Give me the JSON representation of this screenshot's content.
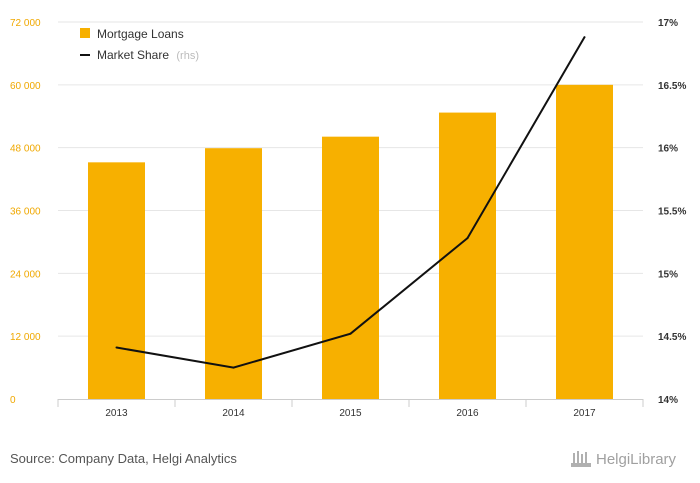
{
  "chart_data": {
    "type": "bar",
    "categories": [
      "2013",
      "2014",
      "2015",
      "2016",
      "2017"
    ],
    "series": [
      {
        "name": "Mortgage Loans",
        "type": "bar",
        "axis": "left",
        "values": [
          45200,
          47900,
          50100,
          54700,
          60000
        ]
      },
      {
        "name": "Market Share",
        "type": "line",
        "axis": "right",
        "values": [
          14.41,
          14.25,
          14.52,
          15.28,
          16.88
        ]
      }
    ],
    "y_left": {
      "ylim": [
        0,
        72000
      ],
      "ticks": [
        0,
        12000,
        24000,
        36000,
        48000,
        60000,
        72000
      ],
      "tick_labels": [
        "0",
        "12 000",
        "24 000",
        "36 000",
        "48 000",
        "60 000",
        "72 000"
      ]
    },
    "y_right": {
      "ylim": [
        14,
        17
      ],
      "ticks": [
        14,
        14.5,
        15,
        15.5,
        16,
        16.5,
        17
      ],
      "tick_labels": [
        "14%",
        "14.5%",
        "15%",
        "15.5%",
        "16%",
        "16.5%",
        "17%"
      ]
    },
    "legend": {
      "position": "top-left",
      "rhs_note": "(rhs)"
    },
    "grid": true
  },
  "colors": {
    "bar": "#f7b000",
    "line": "#111111",
    "grid": "#e6e6e6"
  },
  "footer": {
    "source": "Source: Company Data, Helgi Analytics",
    "brand": "HelgiLibrary"
  }
}
